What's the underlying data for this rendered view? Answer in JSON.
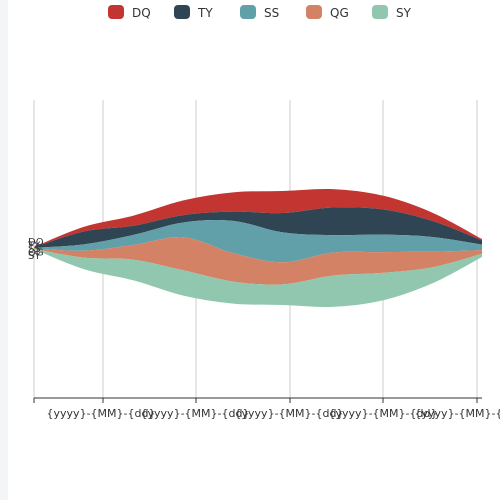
{
  "chart_data": {
    "type": "area",
    "subtype": "theme-river",
    "legend": {
      "placement": "top-center"
    },
    "grid": {
      "vertical": true
    },
    "x_tick_labels": [
      "{yyyy}-{MM}-{dd}",
      "{yyyy}-{MM}-{dd}",
      "{yyyy}-{MM}-{dd}",
      "{yyyy}-{MM}-{dd}",
      "{yyyy}-{MM}-{dd}"
    ],
    "x": [
      0,
      1,
      2,
      3,
      4,
      5,
      6,
      7,
      8,
      9
    ],
    "series": [
      {
        "name": "DQ",
        "color": "#c23531",
        "values": [
          1,
          10,
          22,
          32,
          42,
          48,
          40,
          30,
          18,
          3
        ]
      },
      {
        "name": "TY",
        "color": "#2f4554",
        "values": [
          1,
          28,
          20,
          16,
          20,
          42,
          60,
          55,
          35,
          9
        ]
      },
      {
        "name": "SS",
        "color": "#61a0a8",
        "values": [
          1,
          14,
          22,
          32,
          70,
          65,
          38,
          38,
          32,
          12
        ]
      },
      {
        "name": "QG",
        "color": "#d48265",
        "values": [
          1,
          15,
          32,
          72,
          62,
          48,
          50,
          45,
          34,
          8
        ]
      },
      {
        "name": "SY",
        "color": "#91c7ae",
        "values": [
          1,
          25,
          45,
          55,
          48,
          45,
          68,
          60,
          35,
          7
        ]
      }
    ]
  }
}
